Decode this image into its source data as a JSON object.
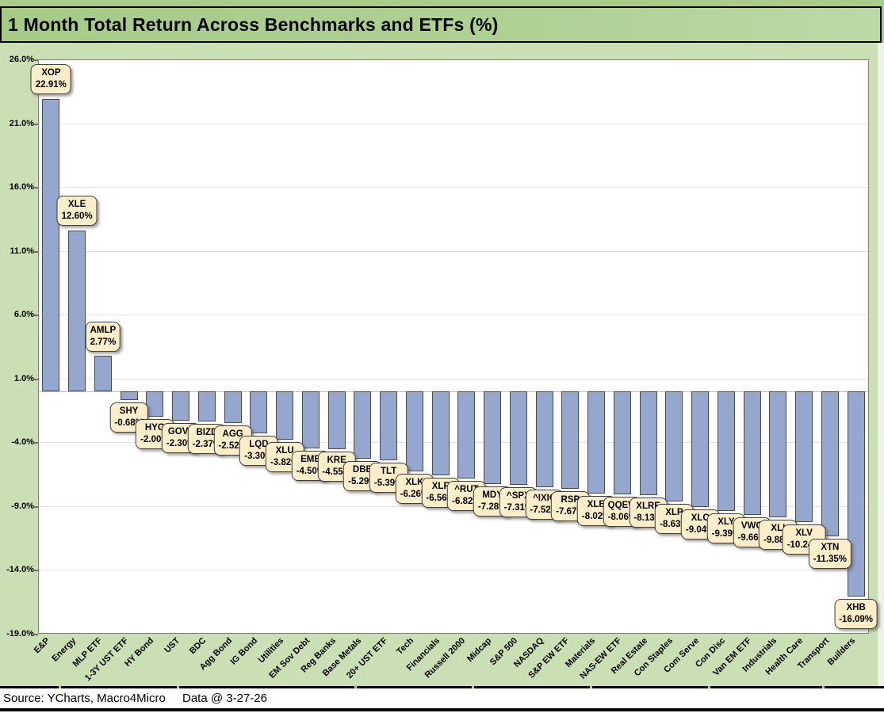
{
  "title": "1 Month Total Return Across Benchmarks and ETFs (%)",
  "footer": {
    "source": "Source: YCharts, Macro4Micro",
    "data_date": "Data @ 3-27-26"
  },
  "chart_data": {
    "type": "bar",
    "title": "1 Month Total Return Across Benchmarks and ETFs (%)",
    "xlabel": "",
    "ylabel": "",
    "ylim": [
      -19,
      26
    ],
    "ytick_step": 5,
    "ytick_labels": [
      "26.0%",
      "21.0%",
      "16.0%",
      "11.0%",
      "6.0%",
      "1.0%",
      "-4.0%",
      "-9.0%",
      "-14.0%",
      "-19.0%"
    ],
    "grid": true,
    "legend": false,
    "categories": [
      "E&P",
      "Energy",
      "MLP ETF",
      "1-3Y UST ETF",
      "HY Bond",
      "UST",
      "BDC",
      "Agg Bond",
      "IG Bond",
      "Utilities",
      "EM Sov Debt",
      "Reg Banks",
      "Base Metals",
      "20+ UST ETF",
      "Tech",
      "Financials",
      "Russell 2000",
      "Midcap",
      "S&P 500",
      "NASDAQ",
      "S&P EW ETF",
      "Materials",
      "NAS-EW ETF",
      "Real Estate",
      "Con Staples",
      "Com Serve",
      "Con Disc",
      "Van EM ETF",
      "Industrials",
      "Health Care",
      "Transport",
      "Builders"
    ],
    "tickers": [
      "XOP",
      "XLE",
      "AMLP",
      "SHY",
      "HYG",
      "GOVT",
      "BIZD",
      "AGG",
      "LQD",
      "XLU",
      "EMB",
      "KRE",
      "DBB",
      "TLT",
      "XLK",
      "XLF",
      "^RUT",
      "MDY",
      "^SPX",
      "^IXIC",
      "RSP",
      "XLB",
      "QQEW",
      "XLRE",
      "XLP",
      "XLC",
      "XLY",
      "VWO",
      "XLI",
      "XLV",
      "XTN",
      "XHB"
    ],
    "values": [
      22.91,
      12.6,
      2.77,
      -0.68,
      -2.0,
      -2.3,
      -2.37,
      -2.52,
      -3.3,
      -3.82,
      -4.5,
      -4.55,
      -5.29,
      -5.39,
      -6.26,
      -6.56,
      -6.82,
      -7.28,
      -7.31,
      -7.52,
      -7.67,
      -8.02,
      -8.06,
      -8.13,
      -8.63,
      -9.04,
      -9.39,
      -9.66,
      -9.88,
      -10.24,
      -11.35,
      -16.09
    ],
    "value_labels": [
      "22.91%",
      "12.60%",
      "2.77%",
      "-0.68%",
      "-2.00%",
      "-2.30%",
      "-2.37%",
      "-2.52%",
      "-3.30%",
      "-3.82%",
      "-4.50%",
      "-4.55%",
      "-5.29%",
      "-5.39%",
      "-6.26%",
      "-6.56%",
      "-6.82%",
      "-7.28%",
      "-7.31%",
      "-7.52%",
      "-7.67%",
      "-8.02%",
      "-8.06%",
      "-8.13%",
      "-8.63%",
      "-9.04%",
      "-9.39%",
      "-9.66%",
      "-9.88%",
      "-10.24%",
      "-11.35%",
      "-16.09%"
    ],
    "colors": {
      "bar_fill": "#95A6CF",
      "bar_border": "#4A4A4A",
      "label_box_bg": "#FBEEC9",
      "label_box_border": "#3F3F3F",
      "page_green": "#A9CE8C",
      "chart_bg": "#CBDFB5",
      "plot_bg": "#FFFFFF",
      "gridline": "#E2E2E2",
      "plot_border": "#7F7F7F",
      "zero_line": "#BFBFBF"
    }
  }
}
